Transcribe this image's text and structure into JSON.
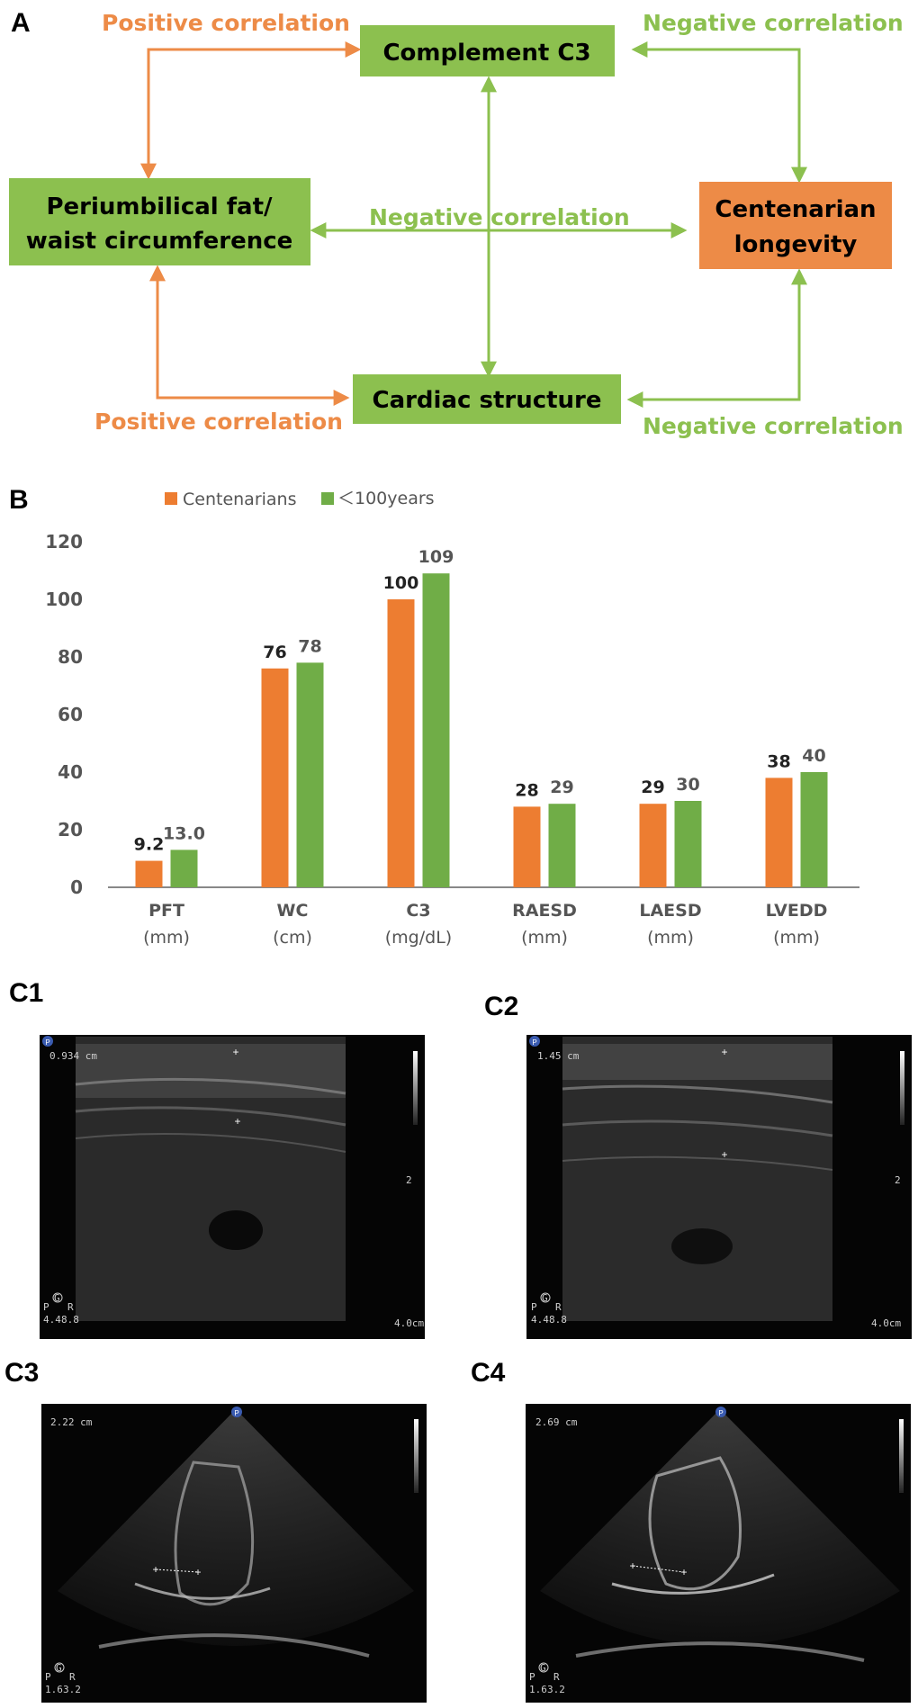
{
  "panelA": {
    "letter": "A",
    "boxes": {
      "c3": "Complement C3",
      "fat_line1": "Periumbilical fat/",
      "fat_line2": "waist circumference",
      "longevity_line1": "Centenarian",
      "longevity_line2": "longevity",
      "cardiac": "Cardiac structure"
    },
    "labels": {
      "top_left": "Positive correlation",
      "top_right": "Negative correlation",
      "middle": "Negative correlation",
      "bottom_left": "Positive correlation",
      "bottom_right": "Negative correlation"
    },
    "colors": {
      "box_green": "#8CC04F",
      "box_orange": "#ED8B47",
      "arrow_green": "#8CC04F",
      "arrow_orange": "#ED8B47"
    }
  },
  "panelB": {
    "letter": "B",
    "legend": [
      "Centenarians",
      "＜100years"
    ]
  },
  "chart_data": {
    "type": "bar",
    "categories": [
      "PFT",
      "WC",
      "C3",
      "RAESD",
      "LAESD",
      "LVEDD"
    ],
    "category_units": [
      "(mm)",
      "(cm)",
      "(mg/dL)",
      "(mm)",
      "(mm)",
      "(mm)"
    ],
    "series": [
      {
        "name": "Centenarians",
        "values": [
          9.2,
          76,
          100,
          28,
          29,
          38
        ],
        "labels": [
          "9.2",
          "76",
          "100",
          "28",
          "29",
          "38"
        ],
        "color": "#ED7D31"
      },
      {
        "name": "＜100years",
        "values": [
          13.0,
          78,
          109,
          29,
          30,
          40
        ],
        "labels": [
          "13.0",
          "78",
          "109",
          "29",
          "30",
          "40"
        ],
        "color": "#70AD47"
      }
    ],
    "ylim": [
      0,
      120
    ],
    "yticks": [
      0,
      20,
      40,
      60,
      80,
      100,
      120
    ],
    "grid": false,
    "legend_position": "top-left"
  },
  "panelC": {
    "images": [
      {
        "letter": "C1",
        "measure": "0.934 cm",
        "depth": "4.0cm",
        "scale_mark": "2",
        "probe": "P",
        "gain": "G",
        "freq_left": "4.4",
        "freq_right": "8.8",
        "pr_left": "P",
        "pr_right": "R"
      },
      {
        "letter": "C2",
        "measure": "1.45 cm",
        "depth": "4.0cm",
        "scale_mark": "2",
        "probe": "P",
        "gain": "G",
        "freq_left": "4.4",
        "freq_right": "8.8",
        "pr_left": "P",
        "pr_right": "R"
      },
      {
        "letter": "C3",
        "measure": "2.22 cm",
        "probe": "P",
        "gain": "G",
        "freq_left": "1.6",
        "freq_right": "3.2",
        "pr_left": "P",
        "pr_right": "R"
      },
      {
        "letter": "C4",
        "measure": "2.69 cm",
        "probe": "P",
        "gain": "G",
        "freq_left": "1.6",
        "freq_right": "3.2",
        "pr_left": "P",
        "pr_right": "R"
      }
    ]
  }
}
